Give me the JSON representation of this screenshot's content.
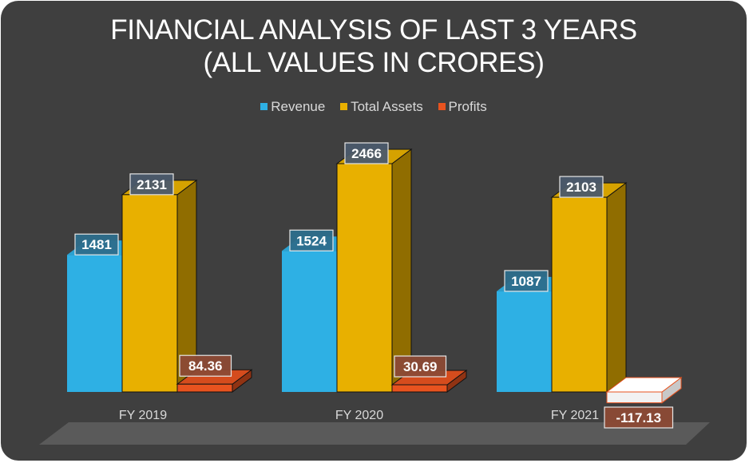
{
  "chart_data": {
    "type": "bar",
    "title_lines": [
      "FINANCIAL ANALYSIS OF LAST 3 YEARS",
      "(ALL VALUES IN CRORES)"
    ],
    "categories": [
      "FY 2019",
      "FY 2020",
      "FY 2021"
    ],
    "series": [
      {
        "name": "Revenue",
        "values": [
          1481,
          1524,
          1087
        ],
        "color": "#2eb0e4"
      },
      {
        "name": "Total Assets",
        "values": [
          2131,
          2466,
          2103
        ],
        "color": "#e8b000"
      },
      {
        "name": "Profits",
        "values": [
          84.36,
          30.69,
          -117.13
        ],
        "color": "#e8531f"
      }
    ],
    "data_labels": [
      [
        "1481",
        "1524",
        "1087"
      ],
      [
        "2131",
        "2466",
        "2103"
      ],
      [
        "84.36",
        "30.69",
        "-117.13"
      ]
    ],
    "xlabel": "",
    "ylabel": "",
    "ylim": [
      0,
      2466
    ],
    "grid": false,
    "legend_position": "top",
    "style": "3d-clustered-column"
  }
}
